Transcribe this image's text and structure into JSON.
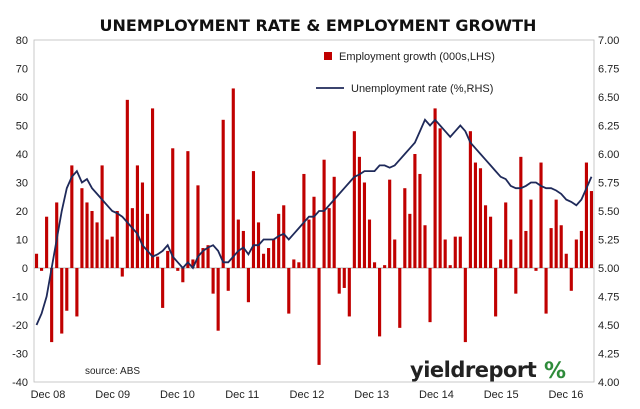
{
  "chart_data": {
    "type": "bar+line",
    "title": "UNEMPLOYMENT RATE & EMPLOYMENT GROWTH",
    "source": "source: ABS",
    "brand": {
      "text": "yieldreport",
      "symbol": "%"
    },
    "x_tick_labels": [
      "Dec 08",
      "Dec 09",
      "Dec 10",
      "Dec 11",
      "Dec 12",
      "Dec 13",
      "Dec 14",
      "Dec 15",
      "Dec 16"
    ],
    "left_axis": {
      "ticks": [
        80,
        70,
        60,
        50,
        40,
        30,
        20,
        10,
        0,
        -10,
        -20,
        -30,
        -40
      ],
      "range": [
        -40,
        80
      ]
    },
    "right_axis": {
      "ticks": [
        "7.00",
        "6.75",
        "6.50",
        "6.25",
        "6.00",
        "5.75",
        "5.50",
        "5.25",
        "5.00",
        "4.75",
        "4.50",
        "4.25",
        "4.00"
      ],
      "range": [
        4.0,
        7.0
      ]
    },
    "grid": false,
    "legend_position": "top-right",
    "colors": {
      "bars": "#c00000",
      "line": "#1f2a5a"
    },
    "series": [
      {
        "name": "Employment growth (000s,LHS)",
        "type": "bar",
        "axis": "left",
        "values": [
          5,
          -1,
          18,
          -26,
          23,
          -23,
          -15,
          36,
          -17,
          28,
          23,
          20,
          16,
          36,
          10,
          11,
          20,
          -3,
          59,
          21,
          36,
          30,
          19,
          56,
          4,
          -14,
          6,
          42,
          -1,
          -5,
          41,
          3,
          29,
          7,
          8,
          -9,
          -22,
          52,
          -8,
          63,
          17,
          13,
          -12,
          34,
          16,
          5,
          7,
          10,
          19,
          22,
          -16,
          3,
          2,
          33,
          17,
          25,
          -34,
          38,
          21,
          32,
          -9,
          -7,
          -17,
          48,
          39,
          30,
          17,
          2,
          -24,
          1,
          31,
          10,
          -21,
          28,
          19,
          40,
          33,
          15,
          -19,
          56,
          49,
          10,
          1,
          11,
          11,
          -26,
          48,
          37,
          35,
          22,
          18,
          -17,
          3,
          23,
          10,
          -9,
          39,
          13,
          24,
          -1,
          37,
          -16,
          14,
          24,
          15,
          5,
          -8,
          10,
          13,
          37,
          27
        ]
      },
      {
        "name": "Unemployment rate (%,RHS)",
        "type": "line",
        "axis": "right",
        "values": [
          4.5,
          4.6,
          4.75,
          5.0,
          5.25,
          5.5,
          5.7,
          5.8,
          5.85,
          5.75,
          5.78,
          5.7,
          5.65,
          5.6,
          5.55,
          5.5,
          5.48,
          5.45,
          5.4,
          5.35,
          5.3,
          5.2,
          5.15,
          5.1,
          5.12,
          5.15,
          5.2,
          5.1,
          5.05,
          5.0,
          5.05,
          5.0,
          5.1,
          5.15,
          5.18,
          5.2,
          5.15,
          5.05,
          5.05,
          5.1,
          5.15,
          5.18,
          5.12,
          5.2,
          5.2,
          5.25,
          5.25,
          5.25,
          5.28,
          5.3,
          5.25,
          5.3,
          5.35,
          5.4,
          5.45,
          5.45,
          5.5,
          5.5,
          5.55,
          5.6,
          5.65,
          5.7,
          5.75,
          5.8,
          5.82,
          5.85,
          5.85,
          5.85,
          5.9,
          5.9,
          5.88,
          5.9,
          5.95,
          6.0,
          6.05,
          6.1,
          6.2,
          6.3,
          6.25,
          6.3,
          6.25,
          6.2,
          6.15,
          6.2,
          6.25,
          6.2,
          6.1,
          6.05,
          6.0,
          5.95,
          5.9,
          5.85,
          5.8,
          5.78,
          5.72,
          5.7,
          5.7,
          5.72,
          5.75,
          5.75,
          5.72,
          5.7,
          5.7,
          5.68,
          5.65,
          5.6,
          5.58,
          5.55,
          5.6,
          5.7,
          5.8
        ]
      }
    ]
  }
}
